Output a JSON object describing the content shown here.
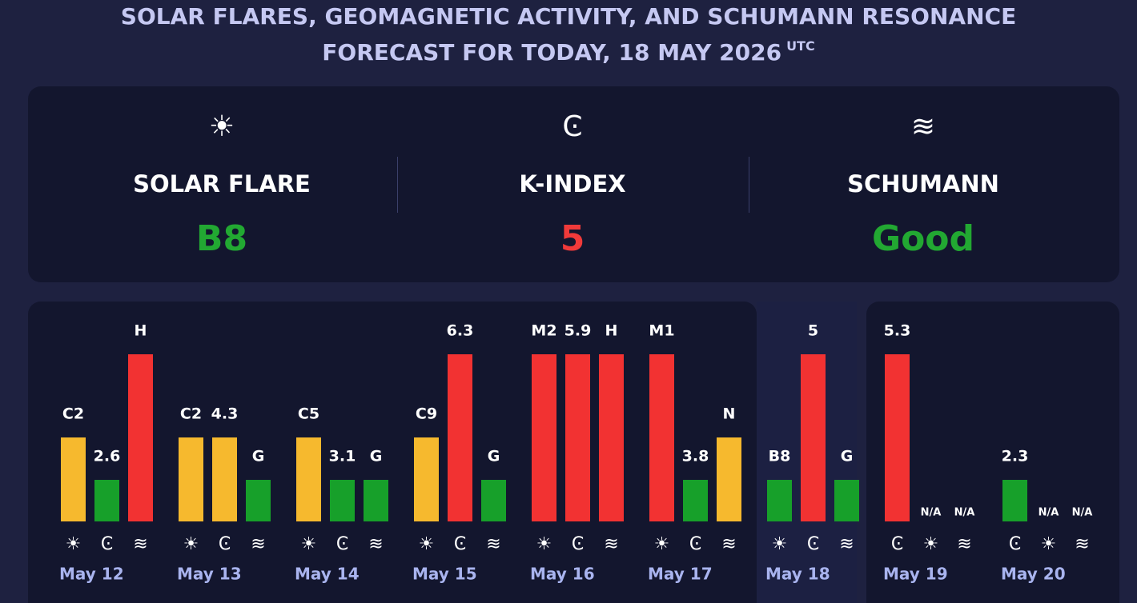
{
  "header": {
    "title_line1": "SOLAR FLARES, GEOMAGNETIC ACTIVITY, AND SCHUMANN RESONANCE",
    "title_line2": "FORECAST FOR TODAY, 18 MAY 2026",
    "title_sup": "UTC"
  },
  "today": [
    {
      "icon": "☀",
      "label": "SOLAR FLARE",
      "value": "B8",
      "color": "#22a832"
    },
    {
      "icon": "Ͼ",
      "label": "K-INDEX",
      "value": "5",
      "color": "#f03a3a"
    },
    {
      "icon": "≋",
      "label": "SCHUMANN",
      "value": "Good",
      "color": "#22a832"
    }
  ],
  "days": [
    {
      "date": "May 12",
      "bars": [
        {
          "label": "C2",
          "color": "#f6b92e",
          "icon": "☀"
        },
        {
          "label": "2.6",
          "color": "#17a02a",
          "icon": "Ͼ"
        },
        {
          "label": "H",
          "color": "#f23232",
          "icon": "≋"
        }
      ]
    },
    {
      "date": "May 13",
      "bars": [
        {
          "label": "C2",
          "color": "#f6b92e",
          "icon": "☀"
        },
        {
          "label": "4.3",
          "color": "#f6b92e",
          "icon": "Ͼ"
        },
        {
          "label": "G",
          "color": "#17a02a",
          "icon": "≋"
        }
      ]
    },
    {
      "date": "May 14",
      "bars": [
        {
          "label": "C5",
          "color": "#f6b92e",
          "icon": "☀"
        },
        {
          "label": "3.1",
          "color": "#17a02a",
          "icon": "Ͼ"
        },
        {
          "label": "G",
          "color": "#17a02a",
          "icon": "≋"
        }
      ]
    },
    {
      "date": "May 15",
      "bars": [
        {
          "label": "C9",
          "color": "#f6b92e",
          "icon": "☀"
        },
        {
          "label": "6.3",
          "color": "#f23232",
          "icon": "Ͼ"
        },
        {
          "label": "G",
          "color": "#17a02a",
          "icon": "≋"
        }
      ]
    },
    {
      "date": "May 16",
      "bars": [
        {
          "label": "M2",
          "color": "#f23232",
          "icon": "☀"
        },
        {
          "label": "5.9",
          "color": "#f23232",
          "icon": "Ͼ"
        },
        {
          "label": "H",
          "color": "#f23232",
          "icon": "≋"
        }
      ]
    },
    {
      "date": "May 17",
      "bars": [
        {
          "label": "M1",
          "color": "#f23232",
          "icon": "☀"
        },
        {
          "label": "3.8",
          "color": "#17a02a",
          "icon": "Ͼ"
        },
        {
          "label": "N",
          "color": "#f6b92e",
          "icon": "≋"
        }
      ]
    },
    {
      "date": "May 18",
      "bars": [
        {
          "label": "B8",
          "color": "#17a02a",
          "icon": "☀"
        },
        {
          "label": "5",
          "color": "#f23232",
          "icon": "Ͼ"
        },
        {
          "label": "G",
          "color": "#17a02a",
          "icon": "≋"
        }
      ]
    },
    {
      "date": "May 19",
      "bars": [
        {
          "label": "5.3",
          "color": "#f23232",
          "icon": "Ͼ"
        },
        {
          "label": "N/A",
          "color": null,
          "icon": "☀"
        },
        {
          "label": "N/A",
          "color": null,
          "icon": "≋"
        }
      ]
    },
    {
      "date": "May 20",
      "bars": [
        {
          "label": "2.3",
          "color": "#17a02a",
          "icon": "Ͼ"
        },
        {
          "label": "N/A",
          "color": null,
          "icon": "☀"
        },
        {
          "label": "N/A",
          "color": null,
          "icon": "≋"
        }
      ]
    }
  ]
}
